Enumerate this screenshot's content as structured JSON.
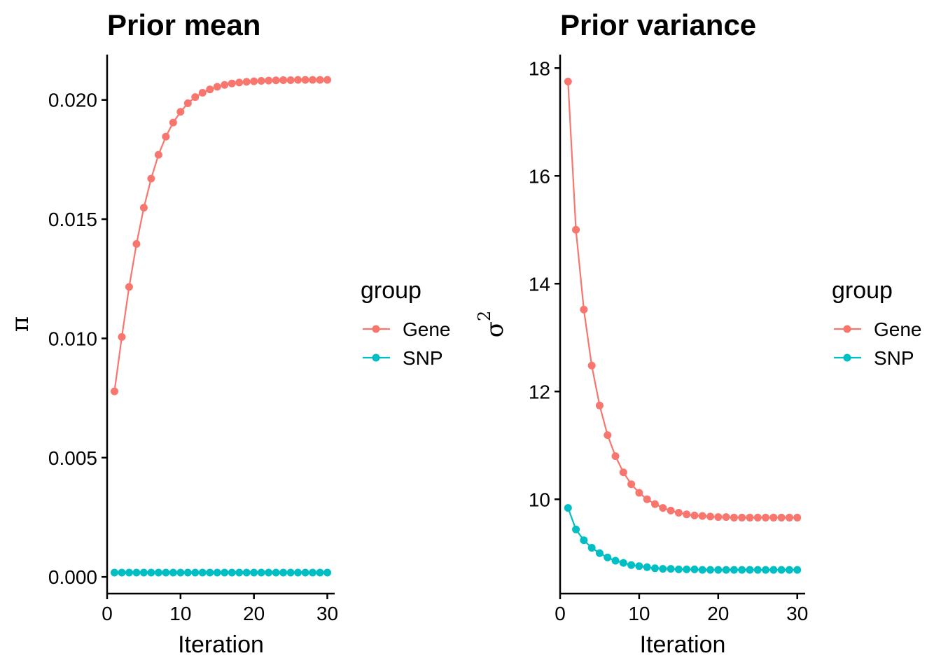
{
  "chart_data": [
    {
      "type": "line",
      "title": "Prior mean",
      "xlabel": "Iteration",
      "ylabel": "π",
      "xlim": [
        0,
        31
      ],
      "ylim": [
        -0.0007,
        0.0219
      ],
      "xticks": [
        0,
        10,
        20,
        30
      ],
      "xtick_labels": [
        "0",
        "10",
        "20",
        "30"
      ],
      "yticks": [
        0.0,
        0.005,
        0.01,
        0.015,
        0.02
      ],
      "ytick_labels": [
        "0.000",
        "0.005",
        "0.010",
        "0.015",
        "0.020"
      ],
      "grid": false,
      "legend_title": "group",
      "legend_position": "right",
      "x": [
        1,
        2,
        3,
        4,
        5,
        6,
        7,
        8,
        9,
        10,
        11,
        12,
        13,
        14,
        15,
        16,
        17,
        18,
        19,
        20,
        21,
        22,
        23,
        24,
        25,
        26,
        27,
        28,
        29,
        30
      ],
      "series": [
        {
          "name": "Gene",
          "color": "#F8766D",
          "values": [
            0.00778,
            0.01006,
            0.01216,
            0.01396,
            0.01548,
            0.0167,
            0.0177,
            0.01846,
            0.01905,
            0.0195,
            0.01986,
            0.02012,
            0.0203,
            0.02044,
            0.02055,
            0.02063,
            0.02069,
            0.02073,
            0.02076,
            0.02078,
            0.0208,
            0.02081,
            0.02082,
            0.02083,
            0.02083,
            0.02084,
            0.02084,
            0.02084,
            0.02084,
            0.02084
          ]
        },
        {
          "name": "SNP",
          "color": "#00BFC4",
          "values": [
            0.00018,
            0.00018,
            0.00018,
            0.00018,
            0.00018,
            0.00018,
            0.00018,
            0.00018,
            0.00018,
            0.00018,
            0.00018,
            0.00018,
            0.00018,
            0.00018,
            0.00018,
            0.00018,
            0.00018,
            0.00018,
            0.00018,
            0.00018,
            0.00018,
            0.00018,
            0.00018,
            0.00018,
            0.00018,
            0.00018,
            0.00018,
            0.00018,
            0.00018,
            0.00018
          ]
        }
      ]
    },
    {
      "type": "line",
      "title": "Prior variance",
      "xlabel": "Iteration",
      "ylabel": "σ",
      "ylabel_superscript": "2",
      "xlim": [
        0,
        31
      ],
      "ylim": [
        8.25,
        18.25
      ],
      "xticks": [
        0,
        10,
        20,
        30
      ],
      "xtick_labels": [
        "0",
        "10",
        "20",
        "30"
      ],
      "yticks": [
        10,
        12,
        14,
        16,
        18
      ],
      "ytick_labels": [
        "10",
        "12",
        "14",
        "16",
        "18"
      ],
      "grid": false,
      "legend_title": "group",
      "legend_position": "right",
      "x": [
        1,
        2,
        3,
        4,
        5,
        6,
        7,
        8,
        9,
        10,
        11,
        12,
        13,
        14,
        15,
        16,
        17,
        18,
        19,
        20,
        21,
        22,
        23,
        24,
        25,
        26,
        27,
        28,
        29,
        30
      ],
      "series": [
        {
          "name": "Gene",
          "color": "#F8766D",
          "values": [
            17.75,
            15.0,
            13.52,
            12.48,
            11.74,
            11.19,
            10.8,
            10.5,
            10.28,
            10.12,
            10.0,
            9.91,
            9.84,
            9.79,
            9.75,
            9.72,
            9.7,
            9.69,
            9.68,
            9.67,
            9.67,
            9.66,
            9.66,
            9.66,
            9.66,
            9.66,
            9.66,
            9.66,
            9.66,
            9.66
          ]
        },
        {
          "name": "SNP",
          "color": "#00BFC4",
          "values": [
            9.84,
            9.44,
            9.24,
            9.1,
            9.0,
            8.92,
            8.86,
            8.82,
            8.78,
            8.76,
            8.74,
            8.72,
            8.71,
            8.71,
            8.7,
            8.7,
            8.7,
            8.69,
            8.69,
            8.69,
            8.69,
            8.69,
            8.69,
            8.69,
            8.69,
            8.69,
            8.69,
            8.69,
            8.69,
            8.69
          ]
        }
      ]
    }
  ]
}
